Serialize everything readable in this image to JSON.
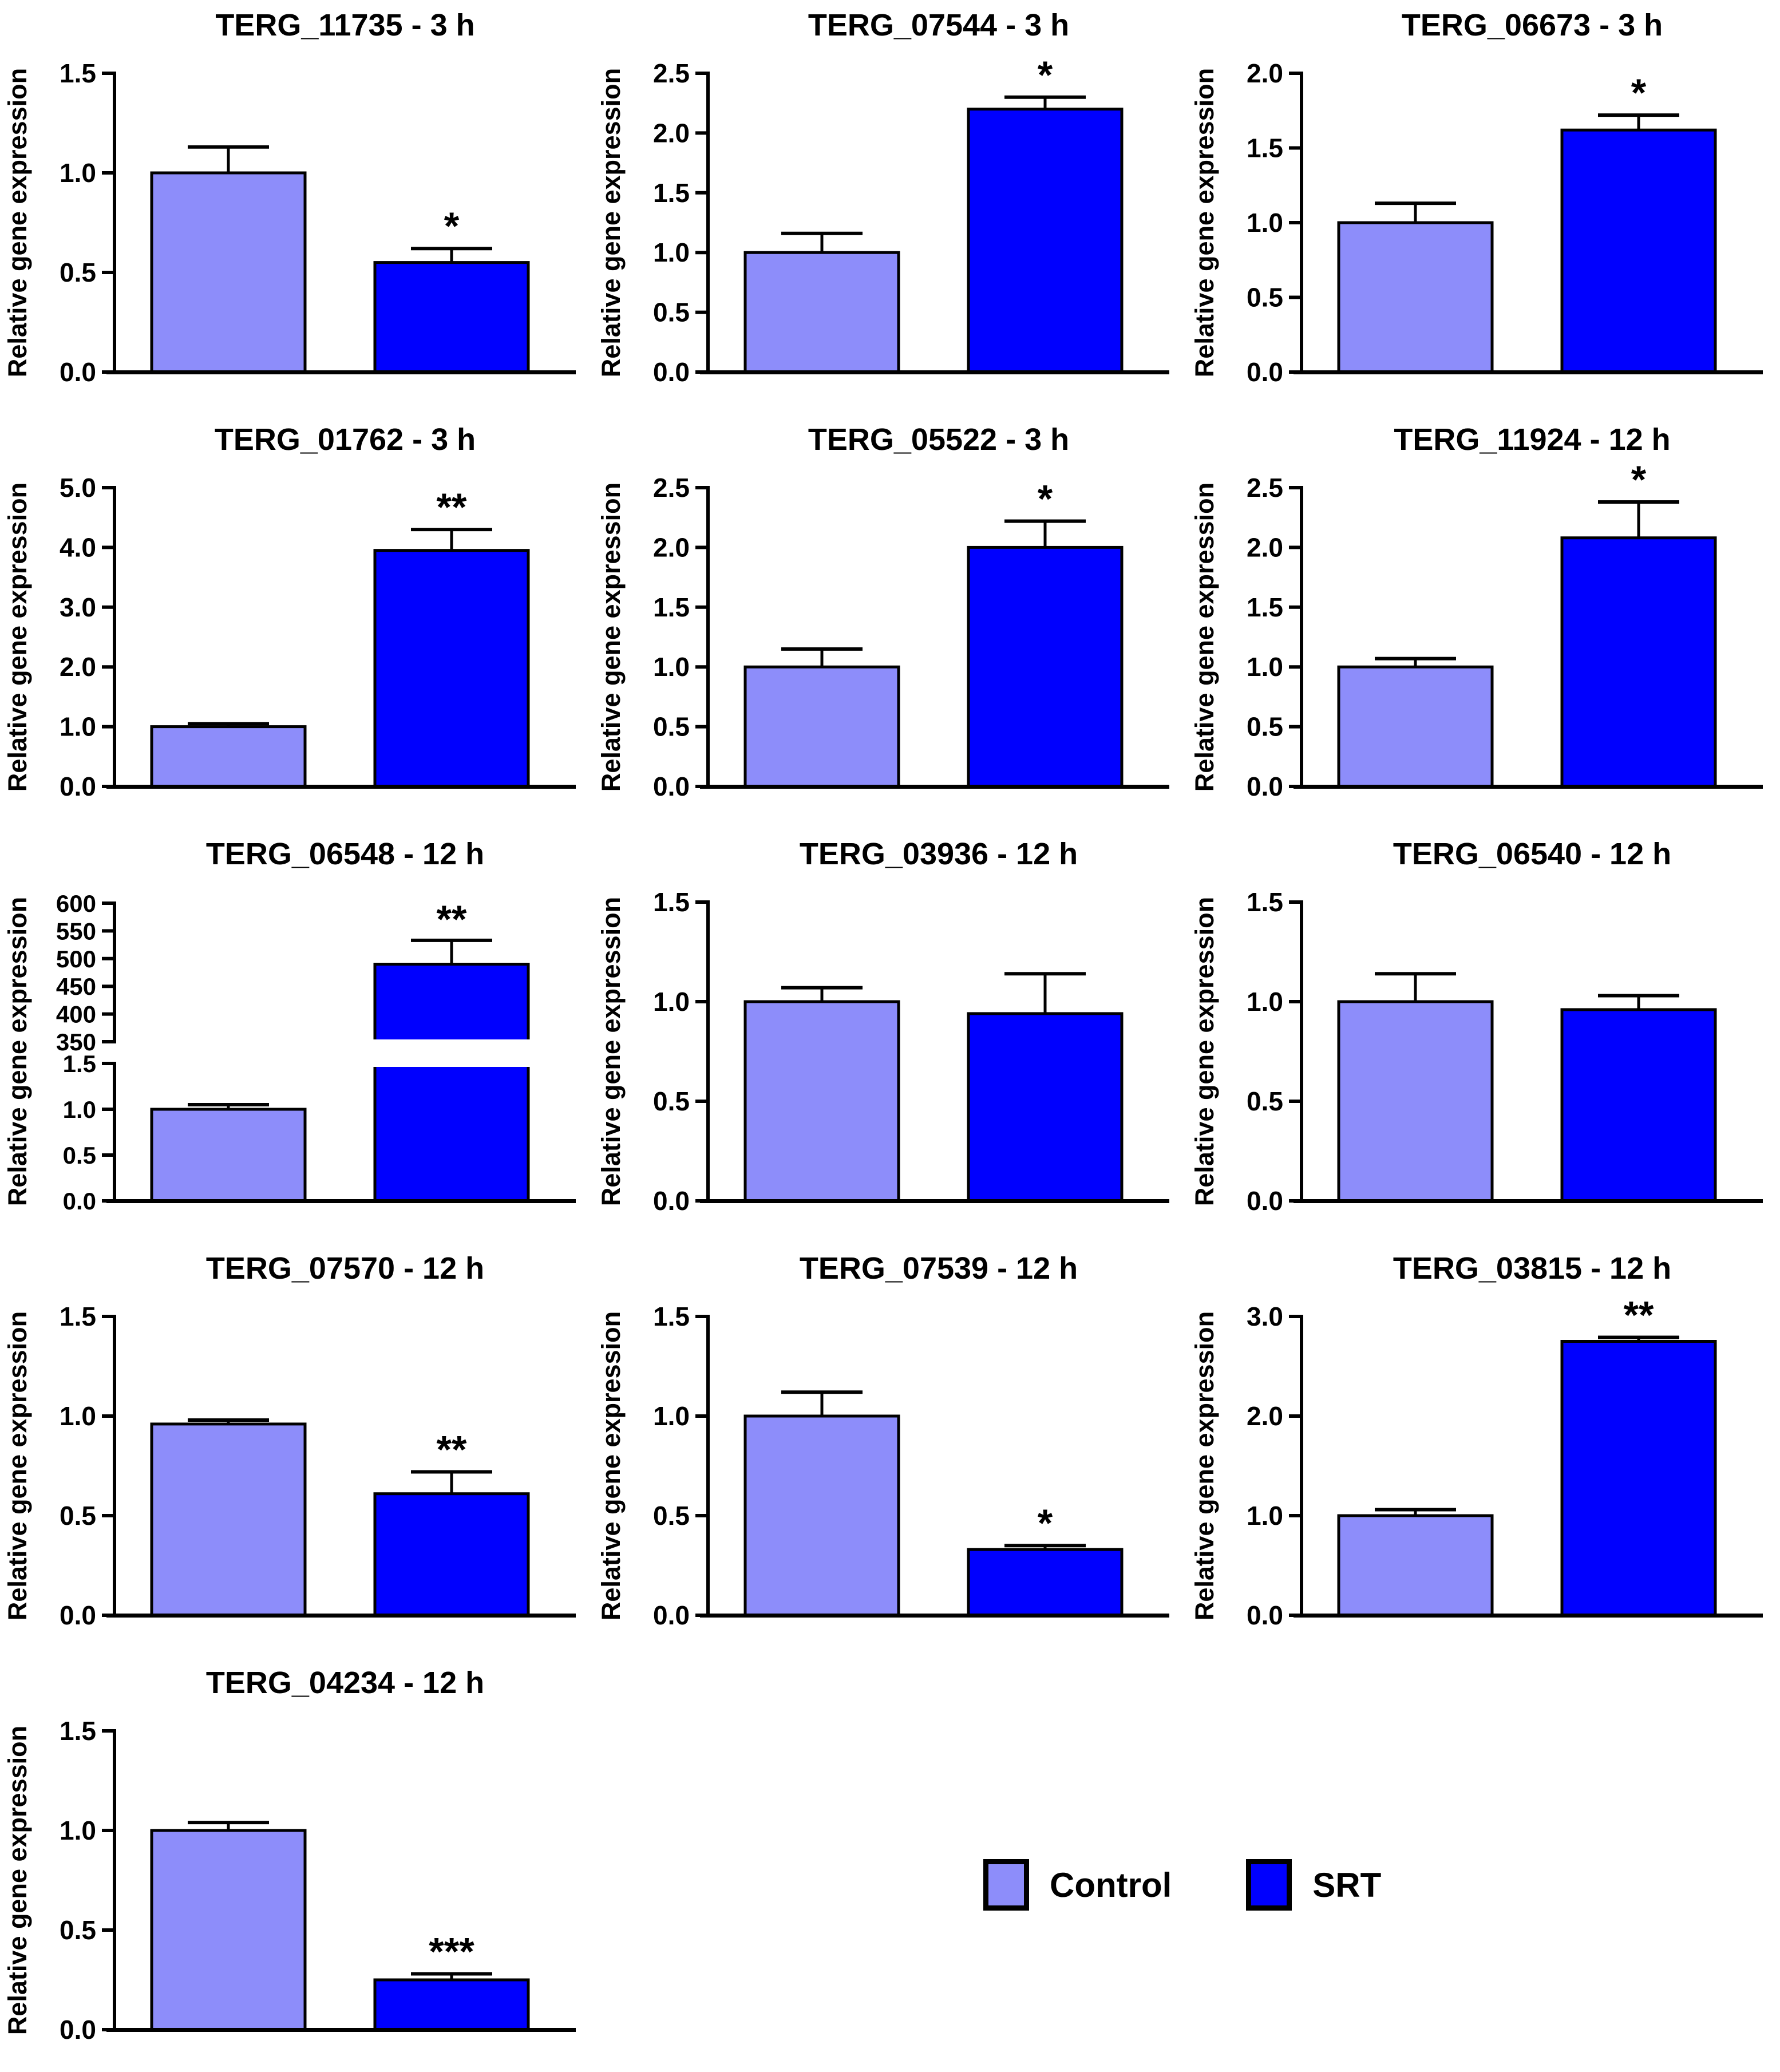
{
  "figure": {
    "ylabel": "Relative gene expression",
    "colors": {
      "control_fill": "#8D8DFA",
      "srt_fill": "#0000FE",
      "axis": "#000000",
      "background": "#FFFFFF"
    },
    "legend": {
      "items": [
        {
          "label": "Control",
          "color": "#8D8DFA"
        },
        {
          "label": "SRT",
          "color": "#0000FE"
        }
      ]
    }
  },
  "chart_data": [
    {
      "type": "bar",
      "title": "TERG_11735 - 3 h",
      "ylabel": "Relative gene expression",
      "categories": [
        "Control",
        "SRT"
      ],
      "values": [
        1.0,
        0.55
      ],
      "errors": [
        0.13,
        0.07
      ],
      "significance": "*",
      "ylim": [
        0,
        1.5
      ],
      "ytick_step": 0.5
    },
    {
      "type": "bar",
      "title": "TERG_07544 - 3 h",
      "ylabel": "Relative gene expression",
      "categories": [
        "Control",
        "SRT"
      ],
      "values": [
        1.0,
        2.2
      ],
      "errors": [
        0.16,
        0.1
      ],
      "significance": "*",
      "ylim": [
        0,
        2.5
      ],
      "ytick_step": 0.5
    },
    {
      "type": "bar",
      "title": "TERG_06673 - 3 h",
      "ylabel": "Relative gene expression",
      "categories": [
        "Control",
        "SRT"
      ],
      "values": [
        1.0,
        1.62
      ],
      "errors": [
        0.13,
        0.1
      ],
      "significance": "*",
      "ylim": [
        0,
        2.0
      ],
      "ytick_step": 0.5
    },
    {
      "type": "bar",
      "title": "TERG_01762 - 3 h",
      "ylabel": "Relative gene expression",
      "categories": [
        "Control",
        "SRT"
      ],
      "values": [
        1.0,
        3.95
      ],
      "errors": [
        0.05,
        0.35
      ],
      "significance": "**",
      "ylim": [
        0,
        5.0
      ],
      "ytick_step": 1.0
    },
    {
      "type": "bar",
      "title": "TERG_05522 - 3 h",
      "ylabel": "Relative gene expression",
      "categories": [
        "Control",
        "SRT"
      ],
      "values": [
        1.0,
        2.0
      ],
      "errors": [
        0.15,
        0.22
      ],
      "significance": "*",
      "ylim": [
        0,
        2.5
      ],
      "ytick_step": 0.5
    },
    {
      "type": "bar",
      "title": "TERG_11924 - 12 h",
      "ylabel": "Relative gene expression",
      "categories": [
        "Control",
        "SRT"
      ],
      "values": [
        1.0,
        2.08
      ],
      "errors": [
        0.07,
        0.3
      ],
      "significance": "*",
      "ylim": [
        0,
        2.5
      ],
      "ytick_step": 0.5
    },
    {
      "type": "bar",
      "title": "TERG_06548 - 12 h",
      "ylabel": "Relative gene expression",
      "categories": [
        "Control",
        "SRT"
      ],
      "values": [
        1.0,
        490
      ],
      "errors": [
        0.05,
        43
      ],
      "significance": "**",
      "axis_break": {
        "lower_range": [
          0,
          1.5
        ],
        "lower_step": 0.5,
        "upper_range": [
          350,
          600
        ],
        "upper_step": 50
      }
    },
    {
      "type": "bar",
      "title": "TERG_03936 - 12 h",
      "ylabel": "Relative gene expression",
      "categories": [
        "Control",
        "SRT"
      ],
      "values": [
        1.0,
        0.94
      ],
      "errors": [
        0.07,
        0.2
      ],
      "significance": "",
      "ylim": [
        0,
        1.5
      ],
      "ytick_step": 0.5
    },
    {
      "type": "bar",
      "title": "TERG_06540 - 12 h",
      "ylabel": "Relative gene expression",
      "categories": [
        "Control",
        "SRT"
      ],
      "values": [
        1.0,
        0.96
      ],
      "errors": [
        0.14,
        0.07
      ],
      "significance": "",
      "ylim": [
        0,
        1.5
      ],
      "ytick_step": 0.5
    },
    {
      "type": "bar",
      "title": "TERG_07570 - 12 h",
      "ylabel": "Relative gene expression",
      "categories": [
        "Control",
        "SRT"
      ],
      "values": [
        0.96,
        0.61
      ],
      "errors": [
        0.02,
        0.11
      ],
      "significance": "**",
      "ylim": [
        0,
        1.5
      ],
      "ytick_step": 0.5
    },
    {
      "type": "bar",
      "title": "TERG_07539 - 12 h",
      "ylabel": "Relative gene expression",
      "categories": [
        "Control",
        "SRT"
      ],
      "values": [
        1.0,
        0.33
      ],
      "errors": [
        0.12,
        0.02
      ],
      "significance": "*",
      "ylim": [
        0,
        1.5
      ],
      "ytick_step": 0.5
    },
    {
      "type": "bar",
      "title": "TERG_03815 - 12 h",
      "ylabel": "Relative gene expression",
      "categories": [
        "Control",
        "SRT"
      ],
      "values": [
        1.0,
        2.75
      ],
      "errors": [
        0.06,
        0.04
      ],
      "significance": "**",
      "ylim": [
        0,
        3.0
      ],
      "ytick_step": 1.0
    },
    {
      "type": "bar",
      "title": "TERG_04234 - 12 h",
      "ylabel": "Relative gene expression",
      "categories": [
        "Control",
        "SRT"
      ],
      "values": [
        1.0,
        0.25
      ],
      "errors": [
        0.04,
        0.03
      ],
      "significance": "***",
      "ylim": [
        0,
        1.5
      ],
      "ytick_step": 0.5
    }
  ]
}
